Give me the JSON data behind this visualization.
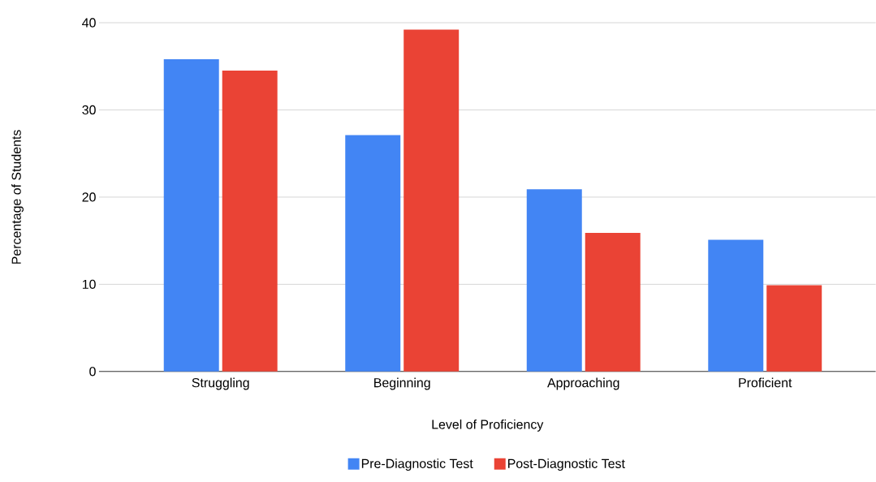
{
  "chart_data": {
    "type": "bar",
    "xlabel": "Level of Proficiency",
    "ylabel": "Percentage of Students",
    "categories": [
      "Struggling",
      "Beginning",
      "Approaching",
      "Proficient"
    ],
    "series": [
      {
        "name": "Pre-Diagnostic Test",
        "color": "#4285f4",
        "values": [
          35.8,
          27.1,
          20.9,
          15.1
        ]
      },
      {
        "name": "Post-Diagnostic Test",
        "color": "#ea4335",
        "values": [
          34.5,
          39.2,
          15.9,
          9.9
        ]
      }
    ],
    "ylim": [
      0,
      40
    ],
    "yticks": [
      0,
      10,
      20,
      30,
      40
    ],
    "grid": "y",
    "legend": "bottom"
  }
}
